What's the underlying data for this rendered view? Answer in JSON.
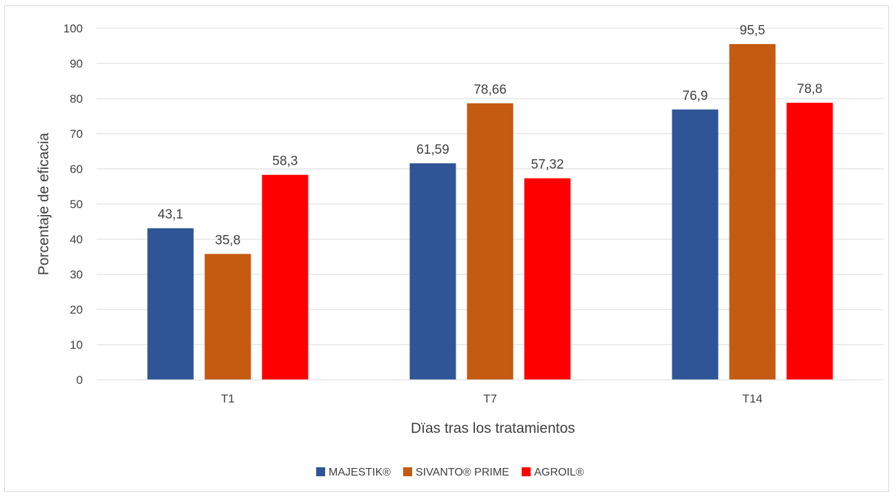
{
  "chart_data": {
    "type": "bar",
    "title": "",
    "xlabel": "Dïas tras los tratamientos",
    "ylabel": "Porcentaje de eficacia",
    "categories": [
      "T1",
      "T7",
      "T14"
    ],
    "ylim": [
      0,
      100
    ],
    "yticks": [
      0,
      10,
      20,
      30,
      40,
      50,
      60,
      70,
      80,
      90,
      100
    ],
    "grid": true,
    "legend_position": "bottom",
    "series": [
      {
        "name": "MAJESTIK®",
        "color": "#2f5597",
        "values": [
          43.1,
          61.59,
          76.9
        ],
        "labels": [
          "43,1",
          "61,59",
          "76,9"
        ]
      },
      {
        "name": "SIVANTO® PRIME",
        "color": "#c55a11",
        "values": [
          35.8,
          78.66,
          95.5
        ],
        "labels": [
          "35,8",
          "78,66",
          "95,5"
        ]
      },
      {
        "name": "AGROIL®",
        "color": "#ff0000",
        "values": [
          58.3,
          57.32,
          78.8
        ],
        "labels": [
          "58,3",
          "57,32",
          "78,8"
        ]
      }
    ]
  }
}
